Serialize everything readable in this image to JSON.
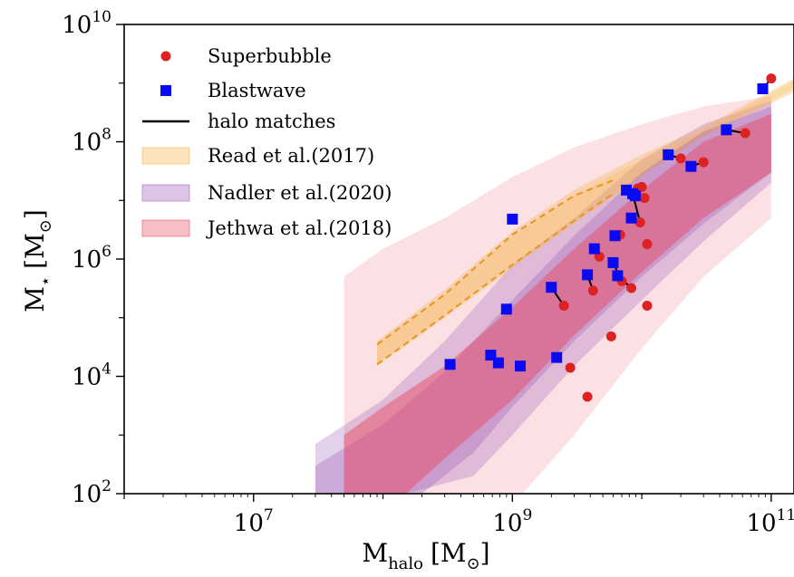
{
  "chart_data": {
    "type": "scatter",
    "title": "",
    "xlabel": {
      "base": "M",
      "sub": "halo",
      "unit": "[M",
      "unit_sub": "⊙",
      "unit_close": "]"
    },
    "ylabel": {
      "base": "M",
      "sub": "⋆",
      "unit": "[M",
      "unit_sub": "⊙",
      "unit_close": "]"
    },
    "xscale": "log",
    "yscale": "log",
    "xlim": [
      1000000.0,
      150000000000.0
    ],
    "ylim": [
      100,
      10000000000.0
    ],
    "x_ticks": [
      {
        "value": 10000000.0,
        "base": "10",
        "exp": "7"
      },
      {
        "value": 1000000000.0,
        "base": "10",
        "exp": "9"
      },
      {
        "value": 100000000000.0,
        "base": "10",
        "exp": "11"
      }
    ],
    "y_ticks": [
      {
        "value": 100,
        "base": "10",
        "exp": "2"
      },
      {
        "value": 10000.0,
        "base": "10",
        "exp": "4"
      },
      {
        "value": 1000000.0,
        "base": "10",
        "exp": "6"
      },
      {
        "value": 100000000.0,
        "base": "10",
        "exp": "8"
      },
      {
        "value": 10000000000.0,
        "base": "10",
        "exp": "10"
      }
    ],
    "grid": false,
    "legend_position": "top-left",
    "legend": [
      {
        "label": "Superbubble",
        "kind": "circle",
        "color": "#dd2222"
      },
      {
        "label": "Blastwave",
        "kind": "square",
        "color": "#0a0af0"
      },
      {
        "label": "halo matches",
        "kind": "line",
        "color": "#000000"
      },
      {
        "label": "Read et al.(2017)",
        "kind": "band",
        "color": "#f5b041"
      },
      {
        "label": "Nadler et al.(2020)",
        "kind": "band",
        "color": "#9b59b6"
      },
      {
        "label": "Jethwa et al.(2018)",
        "kind": "band",
        "color": "#e8445a"
      }
    ],
    "colors": {
      "superbubble": "#dd2222",
      "blastwave": "#0a0af0",
      "read": "#f5b041",
      "read_dash": "#e69520",
      "nadler": "#9b59b6",
      "jethwa": "#e8445a"
    },
    "bands": {
      "jethwa_outer": {
        "upper": [
          [
            50000000.0,
            500000.0
          ],
          [
            100000000.0,
            1500000.0
          ],
          [
            300000000.0,
            5000000.0
          ],
          [
            1000000000.0,
            25000000.0
          ],
          [
            3000000000.0,
            80000000.0
          ],
          [
            10000000000.0,
            200000000.0
          ],
          [
            30000000000.0,
            400000000.0
          ],
          [
            100000000000.0,
            600000000.0
          ]
        ],
        "lower": [
          [
            50000000.0,
            100
          ],
          [
            220000000.0,
            100
          ],
          [
            1200000000.0,
            100
          ],
          [
            3000000000.0,
            1000.0
          ],
          [
            10000000000.0,
            30000.0
          ],
          [
            30000000000.0,
            500000.0
          ],
          [
            100000000000.0,
            5000000.0
          ]
        ]
      },
      "jethwa_inner": {
        "upper": [
          [
            50000000.0,
            1000.0
          ],
          [
            100000000.0,
            3000.0
          ],
          [
            300000000.0,
            15000.0
          ],
          [
            1000000000.0,
            150000.0
          ],
          [
            3000000000.0,
            1500000.0
          ],
          [
            10000000000.0,
            15000000.0
          ],
          [
            30000000000.0,
            100000000.0
          ],
          [
            100000000000.0,
            300000000.0
          ]
        ],
        "lower": [
          [
            50000000.0,
            100
          ],
          [
            150000000.0,
            100
          ],
          [
            300000000.0,
            400
          ],
          [
            1000000000.0,
            4000.0
          ],
          [
            3000000000.0,
            50000.0
          ],
          [
            10000000000.0,
            600000.0
          ],
          [
            30000000000.0,
            5000000.0
          ],
          [
            100000000000.0,
            30000000.0
          ]
        ]
      },
      "nadler_outer": {
        "upper": [
          [
            30000000.0,
            700
          ],
          [
            100000000.0,
            4000.0
          ],
          [
            300000000.0,
            40000.0
          ],
          [
            1000000000.0,
            800000.0
          ],
          [
            3000000000.0,
            5000000.0
          ],
          [
            10000000000.0,
            50000000.0
          ],
          [
            30000000000.0,
            200000000.0
          ],
          [
            100000000000.0,
            500000000.0
          ]
        ],
        "lower": [
          [
            30000000.0,
            100
          ],
          [
            150000000.0,
            100
          ],
          [
            500000000.0,
            200
          ],
          [
            1000000000.0,
            1000.0
          ],
          [
            3000000000.0,
            15000.0
          ],
          [
            10000000000.0,
            200000.0
          ],
          [
            30000000000.0,
            2000000.0
          ],
          [
            100000000000.0,
            20000000.0
          ]
        ]
      },
      "nadler_inner": {
        "upper": [
          [
            30000000.0,
            300
          ],
          [
            100000000.0,
            1500.0
          ],
          [
            300000000.0,
            12000.0
          ],
          [
            1000000000.0,
            200000.0
          ],
          [
            3000000000.0,
            2500000.0
          ],
          [
            10000000000.0,
            30000000.0
          ],
          [
            30000000000.0,
            150000000.0
          ],
          [
            100000000000.0,
            400000000.0
          ]
        ],
        "lower": [
          [
            30000000.0,
            100
          ],
          [
            200000000.0,
            100
          ],
          [
            500000000.0,
            500
          ],
          [
            1000000000.0,
            3000.0
          ],
          [
            3000000000.0,
            40000.0
          ],
          [
            10000000000.0,
            500000.0
          ],
          [
            30000000000.0,
            4000000.0
          ],
          [
            100000000000.0,
            30000000.0
          ]
        ]
      },
      "read_outer": {
        "upper": [
          [
            90000000.0,
            40000.0
          ],
          [
            300000000.0,
            300000.0
          ],
          [
            1000000000.0,
            3000000.0
          ],
          [
            3000000000.0,
            15000000.0
          ],
          [
            10000000000.0,
            60000000.0
          ],
          [
            30000000000.0,
            180000000.0
          ],
          [
            150000000000.0,
            1200000000.0
          ]
        ],
        "lower": [
          [
            90000000.0,
            15000.0
          ],
          [
            300000000.0,
            100000.0
          ],
          [
            1000000000.0,
            700000.0
          ],
          [
            3000000000.0,
            4000000.0
          ],
          [
            10000000000.0,
            25000000.0
          ],
          [
            30000000000.0,
            120000000.0
          ],
          [
            150000000000.0,
            700000000.0
          ]
        ]
      },
      "read_inner": {
        "upper": [
          [
            90000000.0,
            35000.0
          ],
          [
            300000000.0,
            250000.0
          ],
          [
            1000000000.0,
            2500000.0
          ],
          [
            3000000000.0,
            12000000.0
          ],
          [
            10000000000.0,
            50000000.0
          ],
          [
            30000000000.0,
            160000000.0
          ],
          [
            150000000000.0,
            1100000000.0
          ]
        ],
        "lower": [
          [
            90000000.0,
            17000.0
          ],
          [
            300000000.0,
            110000.0
          ],
          [
            1000000000.0,
            800000.0
          ],
          [
            3000000000.0,
            4500000.0
          ],
          [
            10000000000.0,
            27000000.0
          ],
          [
            30000000000.0,
            130000000.0
          ],
          [
            150000000000.0,
            800000000.0
          ]
        ]
      }
    },
    "read_dashed": {
      "upper": [
        [
          90000000.0,
          35000.0
        ],
        [
          300000000.0,
          250000.0
        ],
        [
          1000000000.0,
          2600000.0
        ],
        [
          3000000000.0,
          12000000.0
        ],
        [
          6000000000.0,
          22000000.0
        ]
      ],
      "lower": [
        [
          90000000.0,
          16000.0
        ],
        [
          300000000.0,
          110000.0
        ],
        [
          1000000000.0,
          800000.0
        ],
        [
          3000000000.0,
          4500000.0
        ],
        [
          6000000000.0,
          13000000.0
        ]
      ]
    },
    "halo_matches": [
      [
        [
          2000000000.0,
          330000.0
        ],
        [
          2500000000.0,
          160000.0
        ]
      ],
      [
        [
          3800000000.0,
          540000.0
        ],
        [
          4200000000.0,
          290000.0
        ]
      ],
      [
        [
          4300000000.0,
          1500000.0
        ],
        [
          4700000000.0,
          1100000.0
        ]
      ],
      [
        [
          6000000000.0,
          870000.0
        ],
        [
          7000000000.0,
          420000.0
        ]
      ],
      [
        [
          6500000000.0,
          520000.0
        ],
        [
          8300000000.0,
          320000.0
        ]
      ],
      [
        [
          7600000000.0,
          15000000.0
        ],
        [
          9200000000.0,
          12000000.0
        ]
      ],
      [
        [
          8500000000.0,
          13000000.0
        ],
        [
          9700000000.0,
          4200000.0
        ]
      ],
      [
        [
          8900000000.0,
          12000000.0
        ],
        [
          9300000000.0,
          16000000.0
        ]
      ],
      [
        [
          16000000000.0,
          60000000.0
        ],
        [
          20000000000.0,
          52000000.0
        ]
      ],
      [
        [
          24000000000.0,
          38000000.0
        ],
        [
          30000000000.0,
          45000000.0
        ]
      ],
      [
        [
          45000000000.0,
          160000000.0
        ],
        [
          63000000000.0,
          140000000.0
        ]
      ],
      [
        [
          86000000000.0,
          800000000.0
        ],
        [
          100000000000.0,
          1200000000.0
        ]
      ]
    ],
    "series": [
      {
        "name": "Superbubble",
        "marker": "circle",
        "points": [
          [
            2500000000.0,
            160000.0
          ],
          [
            2800000000.0,
            14000.0
          ],
          [
            3800000000.0,
            4500.0
          ],
          [
            4200000000.0,
            290000.0
          ],
          [
            4700000000.0,
            1100000.0
          ],
          [
            5800000000.0,
            48000.0
          ],
          [
            6800000000.0,
            2600000.0
          ],
          [
            7000000000.0,
            420000.0
          ],
          [
            8300000000.0,
            320000.0
          ],
          [
            9200000000.0,
            12000000.0
          ],
          [
            9300000000.0,
            16000000.0
          ],
          [
            9700000000.0,
            4200000.0
          ],
          [
            10000000000.0,
            17000000.0
          ],
          [
            10500000000.0,
            11000000.0
          ],
          [
            11000000000.0,
            1800000.0
          ],
          [
            11000000000.0,
            160000.0
          ],
          [
            20000000000.0,
            52000000.0
          ],
          [
            30000000000.0,
            45000000.0
          ],
          [
            63000000000.0,
            140000000.0
          ],
          [
            100000000000.0,
            1200000000.0
          ]
        ]
      },
      {
        "name": "Blastwave",
        "marker": "square",
        "points": [
          [
            330000000.0,
            16000.0
          ],
          [
            680000000.0,
            23000.0
          ],
          [
            780000000.0,
            17000.0
          ],
          [
            900000000.0,
            140000.0
          ],
          [
            1000000000.0,
            4800000.0
          ],
          [
            1150000000.0,
            15000.0
          ],
          [
            2000000000.0,
            330000.0
          ],
          [
            2200000000.0,
            21000.0
          ],
          [
            3800000000.0,
            540000.0
          ],
          [
            4300000000.0,
            1500000.0
          ],
          [
            6000000000.0,
            870000.0
          ],
          [
            6200000000.0,
            2500000.0
          ],
          [
            6500000000.0,
            520000.0
          ],
          [
            7600000000.0,
            15000000.0
          ],
          [
            8500000000.0,
            13000000.0
          ],
          [
            8300000000.0,
            5000000.0
          ],
          [
            8900000000.0,
            12000000.0
          ],
          [
            16000000000.0,
            60000000.0
          ],
          [
            24000000000.0,
            38000000.0
          ],
          [
            45000000000.0,
            160000000.0
          ],
          [
            86000000000.0,
            800000000.0
          ]
        ]
      }
    ]
  }
}
